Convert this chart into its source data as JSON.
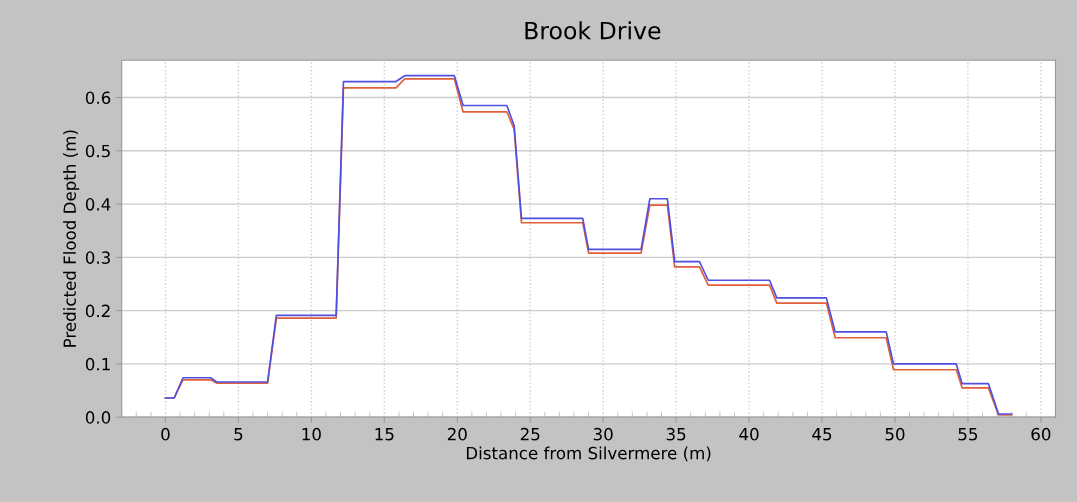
{
  "chart_data": {
    "type": "line",
    "title": "Brook Drive",
    "xlabel": "Distance from Silvermere (m)",
    "ylabel": "Predicted Flood Depth (m)",
    "x": [
      0,
      0.6,
      1.2,
      3.1,
      3.5,
      7.0,
      7.6,
      11.7,
      12.2,
      15.8,
      16.4,
      19.8,
      20.4,
      23.4,
      23.9,
      24.4,
      28.6,
      29.0,
      32.6,
      33.2,
      34.4,
      34.9,
      36.6,
      37.2,
      41.4,
      41.9,
      45.3,
      45.9,
      49.4,
      49.9,
      54.2,
      54.6,
      56.4,
      57.1,
      58.0
    ],
    "series": [
      {
        "color": "#e0603c",
        "values": [
          0.036,
          0.036,
          0.07,
          0.07,
          0.064,
          0.064,
          0.186,
          0.186,
          0.618,
          0.618,
          0.635,
          0.635,
          0.573,
          0.573,
          0.54,
          0.365,
          0.365,
          0.308,
          0.308,
          0.398,
          0.398,
          0.282,
          0.282,
          0.248,
          0.248,
          0.214,
          0.214,
          0.149,
          0.149,
          0.089,
          0.089,
          0.055,
          0.055,
          0.004,
          0.004
        ]
      },
      {
        "color": "#5050e0",
        "values": [
          0.036,
          0.036,
          0.074,
          0.074,
          0.066,
          0.066,
          0.191,
          0.191,
          0.63,
          0.63,
          0.641,
          0.641,
          0.585,
          0.585,
          0.547,
          0.373,
          0.373,
          0.315,
          0.315,
          0.41,
          0.41,
          0.292,
          0.292,
          0.257,
          0.257,
          0.224,
          0.224,
          0.16,
          0.16,
          0.1,
          0.1,
          0.063,
          0.063,
          0.006,
          0.006
        ]
      }
    ],
    "xlim": [
      -3,
      61
    ],
    "ylim": [
      0,
      0.67
    ],
    "xticks": [
      0,
      5,
      10,
      15,
      20,
      25,
      30,
      35,
      40,
      45,
      50,
      55,
      60
    ],
    "yticks": [
      {
        "value": 0,
        "label": "0.0"
      },
      {
        "value": 0.1,
        "label": "0.1"
      },
      {
        "value": 0.2,
        "label": "0.2"
      },
      {
        "value": 0.3,
        "label": "0.3"
      },
      {
        "value": 0.4,
        "label": "0.4"
      },
      {
        "value": 0.5,
        "label": "0.5"
      },
      {
        "value": 0.6,
        "label": "0.6"
      }
    ],
    "grid": true,
    "marker": "none",
    "line_style": "solid"
  }
}
